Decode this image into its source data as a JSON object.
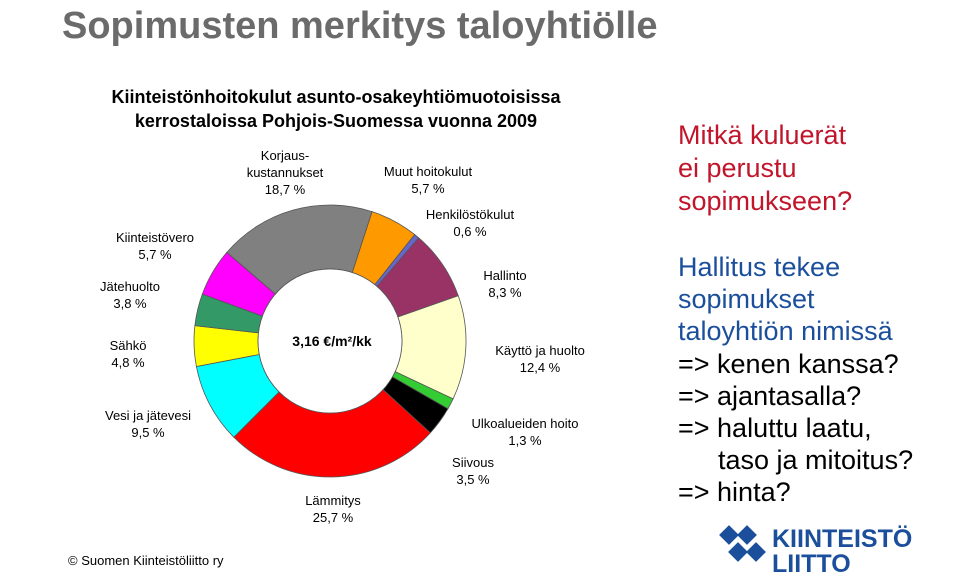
{
  "slide_title": "Sopimusten merkitys taloyhtiölle",
  "chart_data": {
    "type": "pie",
    "title": "Kiinteistönhoitokulut asunto-osakeyhtiömuotoisissa\nkerrostaloissa Pohjois-Suomessa vuonna 2009",
    "center_label": "3,16 €/m²/kk",
    "categories": [
      "Muut hoitokulut",
      "Henkilöstökulut",
      "Hallinto",
      "Käyttö ja huolto",
      "Ulkoalueiden hoito",
      "Siivous",
      "Lämmitys",
      "Vesi ja jätevesi",
      "Sähkö",
      "Jätehuolto",
      "Kiinteistövero",
      "Korjaus-\nkustannukset"
    ],
    "values": [
      5.7,
      0.6,
      8.3,
      12.4,
      1.3,
      3.5,
      25.7,
      9.5,
      4.8,
      3.8,
      5.7,
      18.7
    ],
    "value_labels": [
      "5,7 %",
      "0,6 %",
      "8,3 %",
      "12,4 %",
      "1,3 %",
      "3,5 %",
      "25,7 %",
      "9,5 %",
      "4,8 %",
      "3,8 %",
      "5,7 %",
      "18,7 %"
    ],
    "colors": [
      "#ff9900",
      "#6666cc",
      "#993366",
      "#ffffcc",
      "#33cc33",
      "#000000",
      "#ff0000",
      "#00ffff",
      "#ffff00",
      "#339966",
      "#ff00ff",
      "#808080"
    ]
  },
  "question": [
    "Mitkä kuluerät",
    "ei perustu",
    "sopimukseen?"
  ],
  "statement": [
    "Hallitus tekee",
    "sopimukset",
    "taloyhtiön nimissä"
  ],
  "sub_questions": [
    "=> kenen kanssa?",
    "=> ajantasalla?",
    "=> haluttu laatu,",
    "taso ja mitoitus?",
    "=> hinta?"
  ],
  "footer": "© Suomen Kiinteistöliitto ry",
  "logo": [
    "KIINTEISTÖ",
    "LIITTO"
  ]
}
